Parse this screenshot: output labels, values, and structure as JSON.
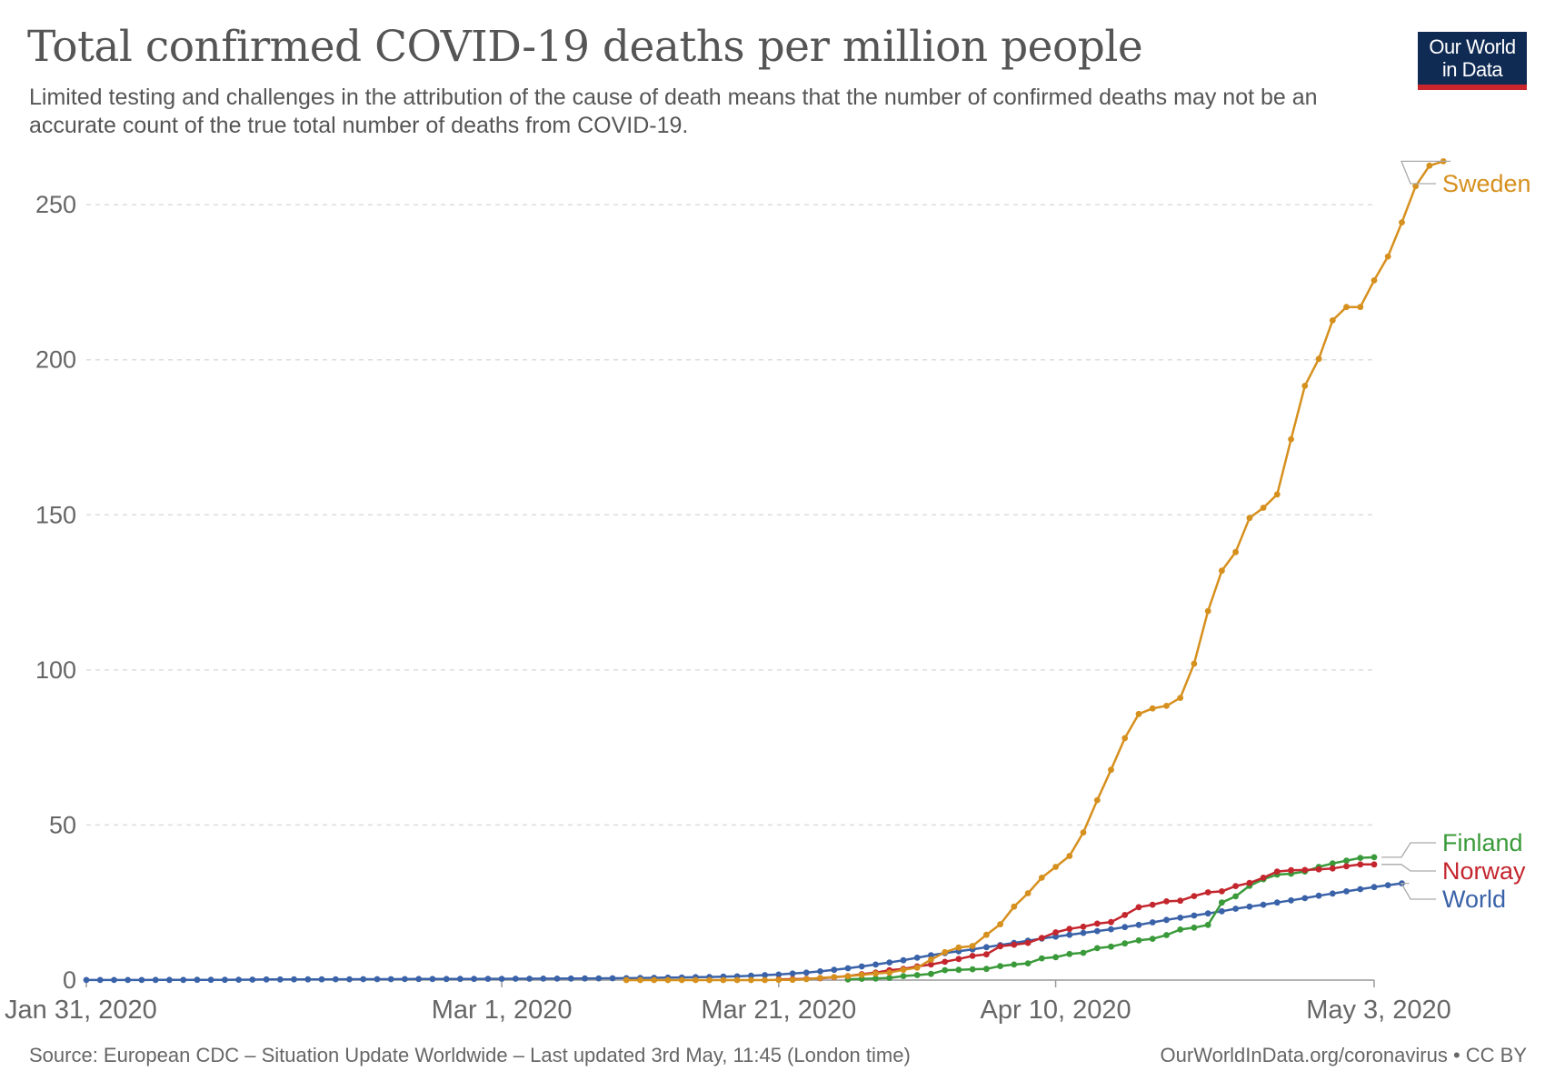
{
  "header": {
    "title": "Total confirmed COVID-19 deaths per million people",
    "subtitle": "Limited testing and challenges in the attribution of the cause of death means that the number of confirmed deaths may not be an accurate count of the true total number of deaths from COVID-19.",
    "logo_text": "Our World\nin Data"
  },
  "footer": {
    "source": "Source: European CDC – Situation Update Worldwide – Last updated 3rd May, 11:45 (London time)",
    "license": "OurWorldInData.org/coronavirus • CC BY"
  },
  "colors": {
    "Sweden": "#d6901e",
    "Finland": "#3a9a3a",
    "Norway": "#c4262e",
    "World": "#3a62a8",
    "grid": "#dddddd",
    "axis": "#666666",
    "logo_bg": "#0f2a53",
    "logo_bar": "#c8252c"
  },
  "chart_data": {
    "type": "line",
    "title": "Total confirmed COVID-19 deaths per million people",
    "xlabel": "",
    "ylabel": "",
    "start_date": "2020-01-31",
    "x_ticks": [
      {
        "day": 0,
        "label": "Jan 31, 2020"
      },
      {
        "day": 30,
        "label": "Mar 1, 2020"
      },
      {
        "day": 50,
        "label": "Mar 21, 2020"
      },
      {
        "day": 70,
        "label": "Apr 10, 2020"
      },
      {
        "day": 93,
        "label": "May 3, 2020"
      }
    ],
    "y_ticks": [
      0,
      50,
      100,
      150,
      200,
      250
    ],
    "ylim": [
      0,
      265
    ],
    "grid": true,
    "legend": "right-end labels",
    "series": [
      {
        "name": "Sweden",
        "start_day": 39,
        "values": [
          0,
          0,
          0,
          0,
          0,
          0,
          0,
          0,
          0,
          0,
          0,
          0.1,
          0.1,
          0.3,
          0.7,
          1,
          1.3,
          1.7,
          2.1,
          2.4,
          3.3,
          4,
          6.6,
          9,
          10.5,
          11,
          14.6,
          18,
          23.7,
          28,
          33,
          36.5,
          40,
          47.6,
          58,
          67.8,
          78,
          85.8,
          87.6,
          88.4,
          91,
          102,
          119,
          132,
          138,
          149,
          152.3,
          156.6,
          174.4,
          191.6,
          200.3,
          212.7,
          217,
          217,
          225.6,
          233.3,
          244.3,
          256,
          262.6,
          264
        ]
      },
      {
        "name": "Norway",
        "start_day": 50,
        "values": [
          0.2,
          0.3,
          0.4,
          0.6,
          0.9,
          1.3,
          1.9,
          2.4,
          3.2,
          3.6,
          4.4,
          5,
          5.9,
          6.8,
          7.8,
          8.3,
          10.9,
          11.4,
          12,
          13.6,
          15.4,
          16.5,
          17.2,
          18.2,
          18.7,
          21,
          23.5,
          24.3,
          25.4,
          25.6,
          27.1,
          28.3,
          28.6,
          30.3,
          31.3,
          33,
          35,
          35.4,
          35.5,
          35.7,
          36,
          36.7,
          37.3,
          37.3
        ]
      },
      {
        "name": "Finland",
        "start_day": 55,
        "values": [
          0.2,
          0.4,
          0.5,
          0.7,
          1.3,
          1.6,
          2,
          3.2,
          3.3,
          3.5,
          3.6,
          4.5,
          5,
          5.4,
          7,
          7.4,
          8.4,
          8.8,
          10.3,
          10.8,
          11.8,
          12.8,
          13.3,
          14.5,
          16.3,
          16.9,
          17.8,
          25,
          27,
          30.4,
          32.5,
          34,
          34.3,
          35,
          36.5,
          37.6,
          38.5,
          39.4,
          39.6
        ]
      },
      {
        "name": "World",
        "start_day": 0,
        "values": [
          0.03,
          0.03,
          0.03,
          0.04,
          0.04,
          0.05,
          0.06,
          0.07,
          0.08,
          0.09,
          0.1,
          0.12,
          0.15,
          0.2,
          0.21,
          0.22,
          0.23,
          0.24,
          0.25,
          0.27,
          0.28,
          0.29,
          0.3,
          0.32,
          0.34,
          0.35,
          0.36,
          0.37,
          0.39,
          0.4,
          0.42,
          0.43,
          0.45,
          0.47,
          0.48,
          0.5,
          0.52,
          0.55,
          0.58,
          0.62,
          0.66,
          0.72,
          0.78,
          0.86,
          0.94,
          1.0,
          1.1,
          1.2,
          1.4,
          1.6,
          1.8,
          2.1,
          2.4,
          2.8,
          3.3,
          3.8,
          4.4,
          5.0,
          5.7,
          6.4,
          7.2,
          8.0,
          8.7,
          9.3,
          9.9,
          10.6,
          11.3,
          12.0,
          12.7,
          13.4,
          14.0,
          14.6,
          15.2,
          15.8,
          16.4,
          17.1,
          17.8,
          18.6,
          19.4,
          20.1,
          20.8,
          21.5,
          22.2,
          23.0,
          23.7,
          24.3,
          25.0,
          25.7,
          26.4,
          27.2,
          27.9,
          28.6,
          29.3,
          30.0,
          30.6,
          31.2
        ]
      }
    ]
  }
}
